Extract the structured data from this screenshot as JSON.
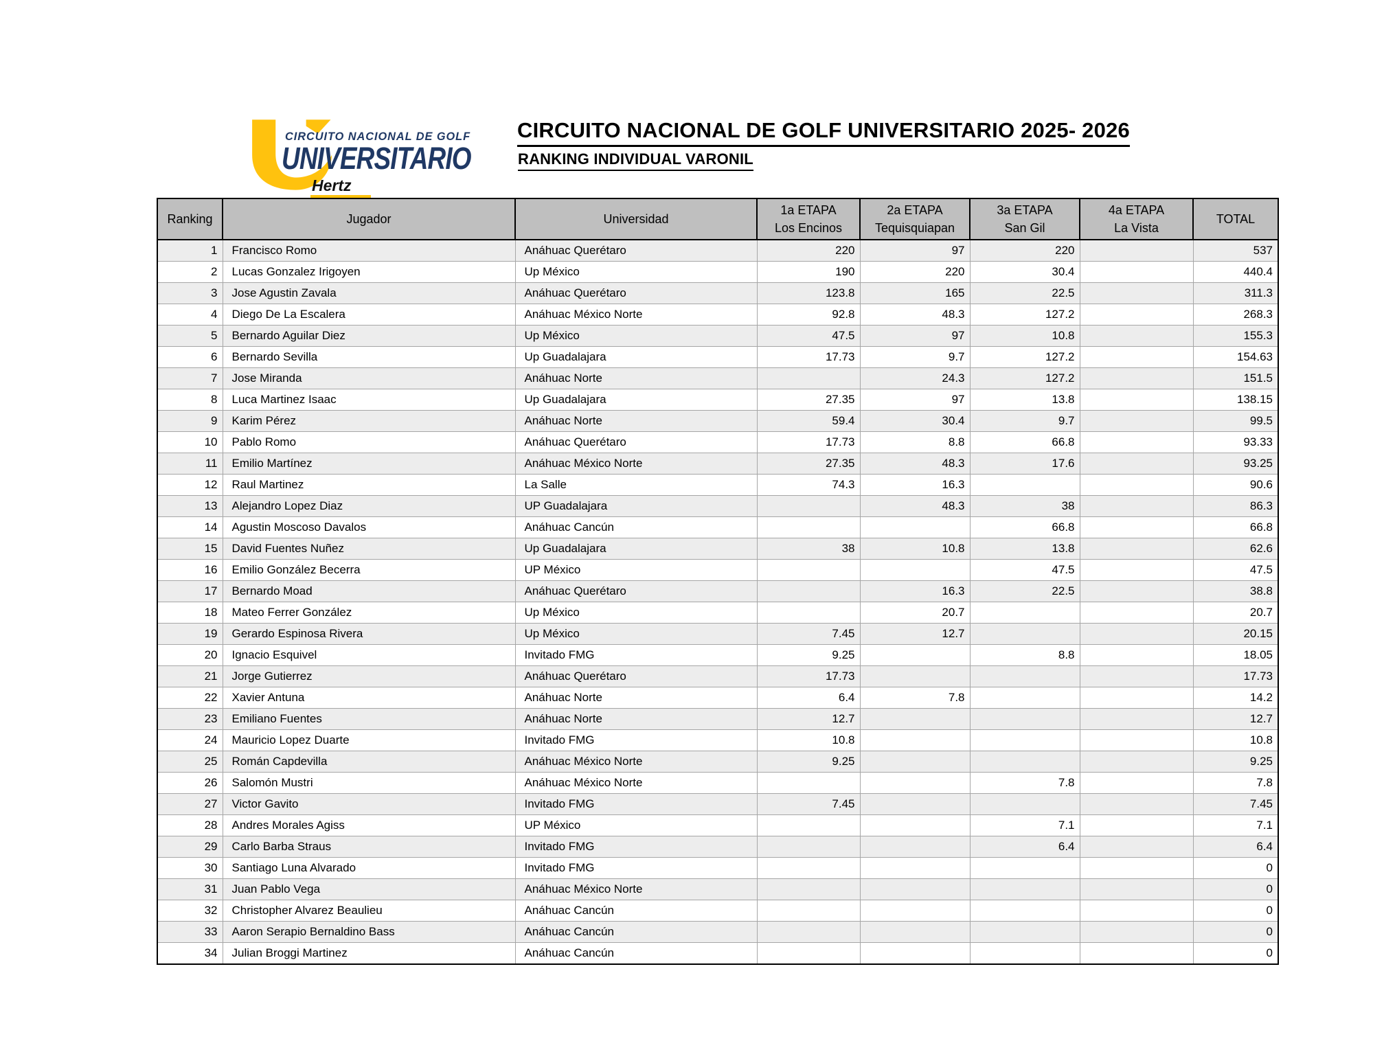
{
  "logo": {
    "line1": "CIRCUITO NACIONAL DE GOLF",
    "line2": "UNIVERSITARIO",
    "line3": "Hertz",
    "colors": {
      "navy": "#1F3864",
      "yellow": "#FFC20E"
    }
  },
  "header": {
    "title": "CIRCUITO NACIONAL DE GOLF UNIVERSITARIO 2025- 2026",
    "subtitle": "RANKING INDIVIDUAL VARONIL"
  },
  "table": {
    "colors": {
      "header_bg": "#BFBFBF",
      "row_alt": "#EDEDED",
      "grid": "#A6A6A6"
    },
    "columns": [
      {
        "label": "Ranking"
      },
      {
        "label": "Jugador"
      },
      {
        "label": "Universidad"
      },
      {
        "label": "1a ETAPA",
        "sublabel": "Los Encinos"
      },
      {
        "label": "2a ETAPA",
        "sublabel": "Tequisquiapan"
      },
      {
        "label": "3a ETAPA",
        "sublabel": "San Gil"
      },
      {
        "label": "4a ETAPA",
        "sublabel": "La Vista"
      },
      {
        "label": "TOTAL"
      }
    ],
    "rows": [
      [
        "1",
        "Francisco Romo",
        "Anáhuac Querétaro",
        "220",
        "97",
        "220",
        "",
        "537"
      ],
      [
        "2",
        "Lucas Gonzalez Irigoyen",
        "Up México",
        "190",
        "220",
        "30.4",
        "",
        "440.4"
      ],
      [
        "3",
        "Jose Agustin Zavala",
        "Anáhuac Querétaro",
        "123.8",
        "165",
        "22.5",
        "",
        "311.3"
      ],
      [
        "4",
        "Diego De La Escalera",
        "Anáhuac México Norte",
        "92.8",
        "48.3",
        "127.2",
        "",
        "268.3"
      ],
      [
        "5",
        "Bernardo Aguilar Diez",
        "Up México",
        "47.5",
        "97",
        "10.8",
        "",
        "155.3"
      ],
      [
        "6",
        "Bernardo Sevilla",
        "Up Guadalajara",
        "17.73",
        "9.7",
        "127.2",
        "",
        "154.63"
      ],
      [
        "7",
        "Jose Miranda",
        "Anáhuac Norte",
        "",
        "24.3",
        "127.2",
        "",
        "151.5"
      ],
      [
        "8",
        "Luca Martinez Isaac",
        "Up Guadalajara",
        "27.35",
        "97",
        "13.8",
        "",
        "138.15"
      ],
      [
        "9",
        "Karim Pérez",
        "Anáhuac Norte",
        "59.4",
        "30.4",
        "9.7",
        "",
        "99.5"
      ],
      [
        "10",
        "Pablo Romo",
        "Anáhuac Querétaro",
        "17.73",
        "8.8",
        "66.8",
        "",
        "93.33"
      ],
      [
        "11",
        "Emilio Martínez",
        "Anáhuac México Norte",
        "27.35",
        "48.3",
        "17.6",
        "",
        "93.25"
      ],
      [
        "12",
        "Raul Martinez",
        "La Salle",
        "74.3",
        "16.3",
        "",
        "",
        "90.6"
      ],
      [
        "13",
        "Alejandro Lopez Diaz",
        "UP Guadalajara",
        "",
        "48.3",
        "38",
        "",
        "86.3"
      ],
      [
        "14",
        "Agustin Moscoso Davalos",
        "Anáhuac Cancún",
        "",
        "",
        "66.8",
        "",
        "66.8"
      ],
      [
        "15",
        "David Fuentes Nuñez",
        "Up Guadalajara",
        "38",
        "10.8",
        "13.8",
        "",
        "62.6"
      ],
      [
        "16",
        "Emilio González Becerra",
        "UP México",
        "",
        "",
        "47.5",
        "",
        "47.5"
      ],
      [
        "17",
        "Bernardo Moad",
        "Anáhuac Querétaro",
        "",
        "16.3",
        "22.5",
        "",
        "38.8"
      ],
      [
        "18",
        "Mateo Ferrer González",
        "Up México",
        "",
        "20.7",
        "",
        "",
        "20.7"
      ],
      [
        "19",
        "Gerardo Espinosa Rivera",
        "Up México",
        "7.45",
        "12.7",
        "",
        "",
        "20.15"
      ],
      [
        "20",
        "Ignacio Esquivel",
        "Invitado FMG",
        "9.25",
        "",
        "8.8",
        "",
        "18.05"
      ],
      [
        "21",
        "Jorge Gutierrez",
        "Anáhuac Querétaro",
        "17.73",
        "",
        "",
        "",
        "17.73"
      ],
      [
        "22",
        "Xavier Antuna",
        "Anáhuac Norte",
        "6.4",
        "7.8",
        "",
        "",
        "14.2"
      ],
      [
        "23",
        "Emiliano Fuentes",
        "Anáhuac Norte",
        "12.7",
        "",
        "",
        "",
        "12.7"
      ],
      [
        "24",
        "Mauricio Lopez Duarte",
        "Invitado FMG",
        "10.8",
        "",
        "",
        "",
        "10.8"
      ],
      [
        "25",
        "Román Capdevilla",
        "Anáhuac México Norte",
        "9.25",
        "",
        "",
        "",
        "9.25"
      ],
      [
        "26",
        "Salomón Mustri",
        "Anáhuac México Norte",
        "",
        "",
        "7.8",
        "",
        "7.8"
      ],
      [
        "27",
        "Victor Gavito",
        "Invitado FMG",
        "7.45",
        "",
        "",
        "",
        "7.45"
      ],
      [
        "28",
        "Andres Morales Agiss",
        "UP México",
        "",
        "",
        "7.1",
        "",
        "7.1"
      ],
      [
        "29",
        "Carlo Barba Straus",
        "Invitado FMG",
        "",
        "",
        "6.4",
        "",
        "6.4"
      ],
      [
        "30",
        "Santiago Luna Alvarado",
        "Invitado FMG",
        "",
        "",
        "",
        "",
        "0"
      ],
      [
        "31",
        "Juan Pablo Vega",
        "Anáhuac México Norte",
        "",
        "",
        "",
        "",
        "0"
      ],
      [
        "32",
        "Christopher Alvarez Beaulieu",
        "Anáhuac Cancún",
        "",
        "",
        "",
        "",
        "0"
      ],
      [
        "33",
        "Aaron Serapio Bernaldino Bass",
        "Anáhuac Cancún",
        "",
        "",
        "",
        "",
        "0"
      ],
      [
        "34",
        "Julian Broggi Martinez",
        "Anáhuac Cancún",
        "",
        "",
        "",
        "",
        "0"
      ]
    ]
  }
}
